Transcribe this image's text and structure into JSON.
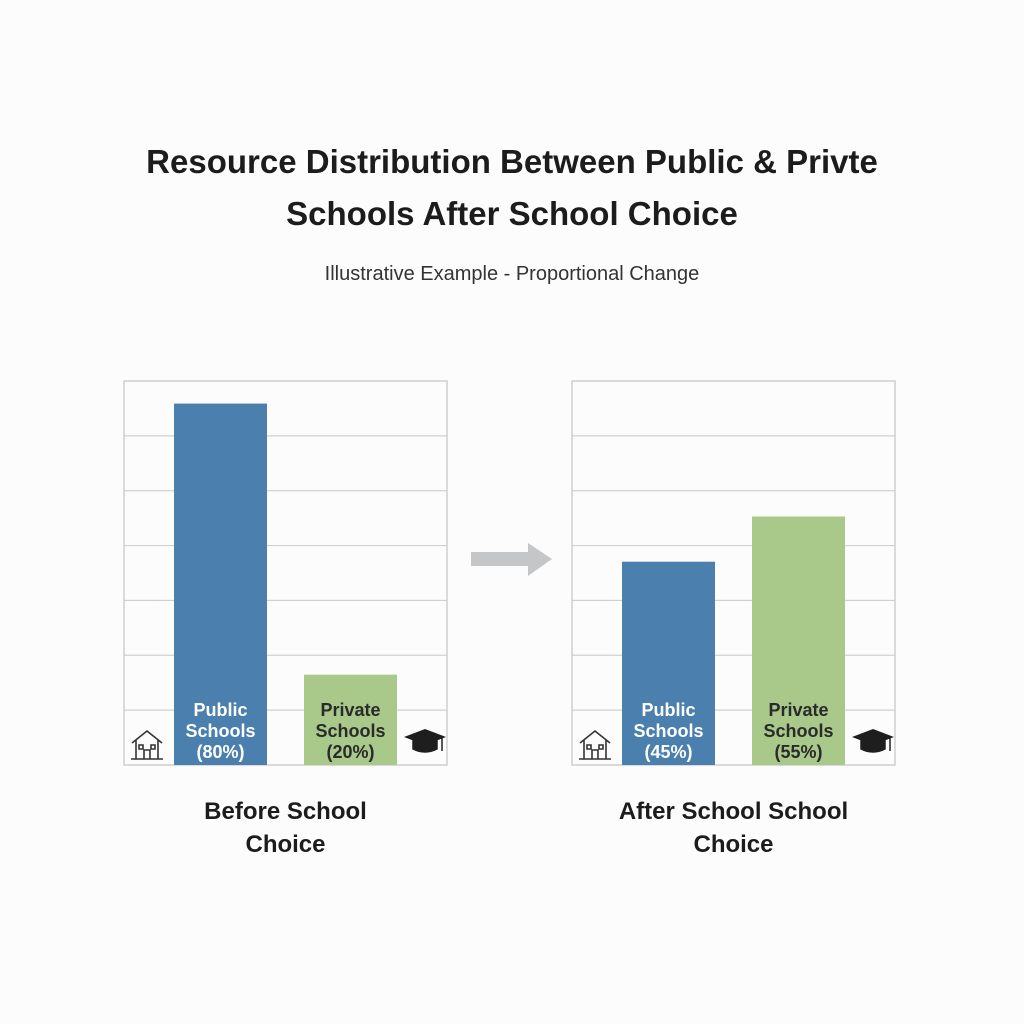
{
  "title": "Resource Distribution Between Public & Privte Schools After School Choice",
  "subtitle": "Illustrative Example - Proportional Change",
  "chart_data": [
    {
      "type": "bar",
      "xlabel": "Before School Choice",
      "categories": [
        "Public Schools",
        "Private Schools"
      ],
      "values": [
        80,
        20
      ],
      "value_labels": [
        "(80%)",
        "(20%)"
      ],
      "colors": [
        "#4a7fae",
        "#a8c98a"
      ],
      "ylim": [
        0,
        85
      ],
      "grid": true
    },
    {
      "type": "bar",
      "xlabel": "After School School Choice",
      "categories": [
        "Public Schools",
        "Private Schools"
      ],
      "values": [
        45,
        55
      ],
      "value_labels": [
        "(45%)",
        "(55%)"
      ],
      "colors": [
        "#4a7fae",
        "#a8c98a"
      ],
      "ylim": [
        0,
        85
      ],
      "grid": true
    }
  ]
}
